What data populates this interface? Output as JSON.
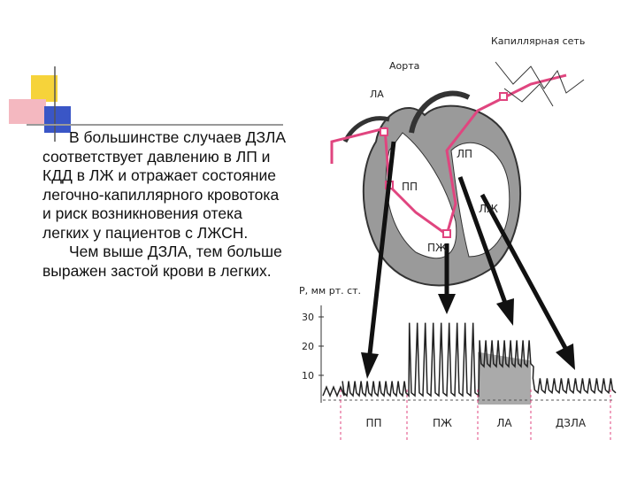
{
  "text": {
    "paragraphs": [
      "В большинстве случаев ДЗЛА соответствует давлению в ЛП и КДД в ЛЖ и отражает состояние легочно-капиллярного кровотока и риск возникновения отека легких у пациентов с ЛЖСН.",
      "Чем выше ДЗЛА, тем больше выражен застой крови в легких."
    ]
  },
  "diagram": {
    "labels": {
      "capillary": "Капиллярная сеть",
      "aorta": "Аорта",
      "la": "ЛА",
      "lp": "ЛП",
      "pp": "ПП",
      "lzh": "ЛЖ",
      "pzh": "ПЖ"
    },
    "axis_label": "Р, мм рт. ст.",
    "yticks": [
      30,
      20,
      10
    ],
    "segments": [
      "ПП",
      "ПЖ",
      "ЛА",
      "ДЗЛА"
    ]
  }
}
